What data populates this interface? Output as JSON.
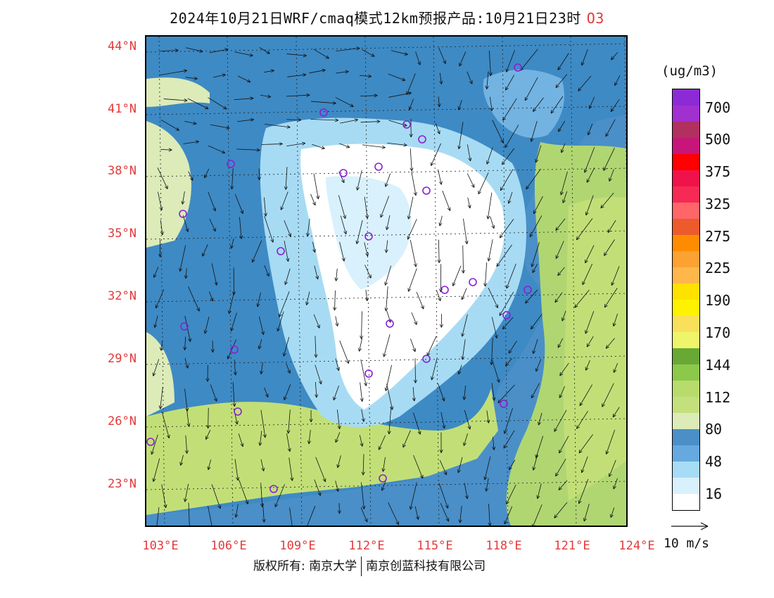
{
  "title": {
    "main": "2024年10月21日WRF/cmaq模式12km预报产品:10月21日23时",
    "species": "O3",
    "species_color": "#e23a3a"
  },
  "map": {
    "lat_labels": [
      "44°N",
      "41°N",
      "38°N",
      "35°N",
      "32°N",
      "29°N",
      "26°N",
      "23°N"
    ],
    "lon_labels": [
      "103°E",
      "106°E",
      "109°E",
      "112°E",
      "115°E",
      "118°E",
      "121°E",
      "124°E"
    ],
    "label_color": "#e23a3a",
    "colors": {
      "sea": "#4a8fc8",
      "land_background": "#3e8ac4",
      "band_30_48": "#72b3e2",
      "band_48_64": "#a7dbf4",
      "band_16_32": "#d8f1fc",
      "band_0_16": "#ffffff",
      "band_80_96": "#dcebb8",
      "band_96_112": "#c2df77",
      "band_112_128": "#b0d672",
      "station_marker": "#8a1ed6",
      "vector": "#111111"
    }
  },
  "legend": {
    "units": "(ug/m3)",
    "colors": [
      "#8c2ad6",
      "#a030d0",
      "#b13060",
      "#c8157a",
      "#ff0000",
      "#f0124a",
      "#f62a55",
      "#ff6668",
      "#ed5a2c",
      "#ff8c00",
      "#fba232",
      "#ffb74a",
      "#ffe200",
      "#fff200",
      "#f8e05a",
      "#eff56a",
      "#68a834",
      "#8cc84a",
      "#b8dc6c",
      "#c4e07c",
      "#dcebb8",
      "#4a8fc8",
      "#66a9df",
      "#a6dcf5",
      "#d8f1fc",
      "#ffffff"
    ],
    "labels": [
      "700",
      "500",
      "375",
      "325",
      "275",
      "225",
      "190",
      "170",
      "144",
      "112",
      "80",
      "48",
      "16"
    ]
  },
  "reference_vector": {
    "label": "10 m/s"
  },
  "footer": {
    "copyright_left": "版权所有: 南京大学",
    "copyright_right": "南京创蓝科技有限公司"
  }
}
